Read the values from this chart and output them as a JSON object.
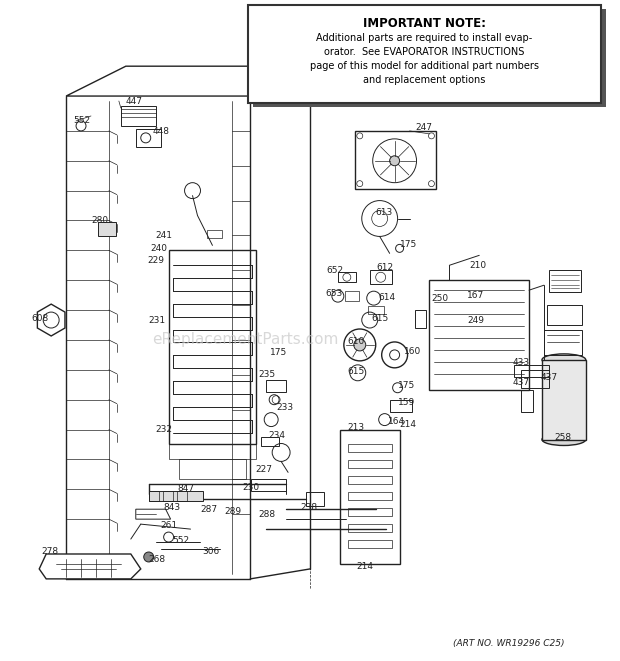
{
  "art_no": "(ART NO. WR19296 C25)",
  "important_note_title": "IMPORTANT NOTE:",
  "important_note_text": "Additional parts are required to install evap-\norator.  See EVAPORATOR INSTRUCTIONS\npage of this model for additional part numbers\nand replacement options",
  "background_color": "#ffffff",
  "line_color": "#222222",
  "text_color": "#222222",
  "watermark_text": "eReplacementParts.com",
  "watermark_color": "#c8c8c8"
}
